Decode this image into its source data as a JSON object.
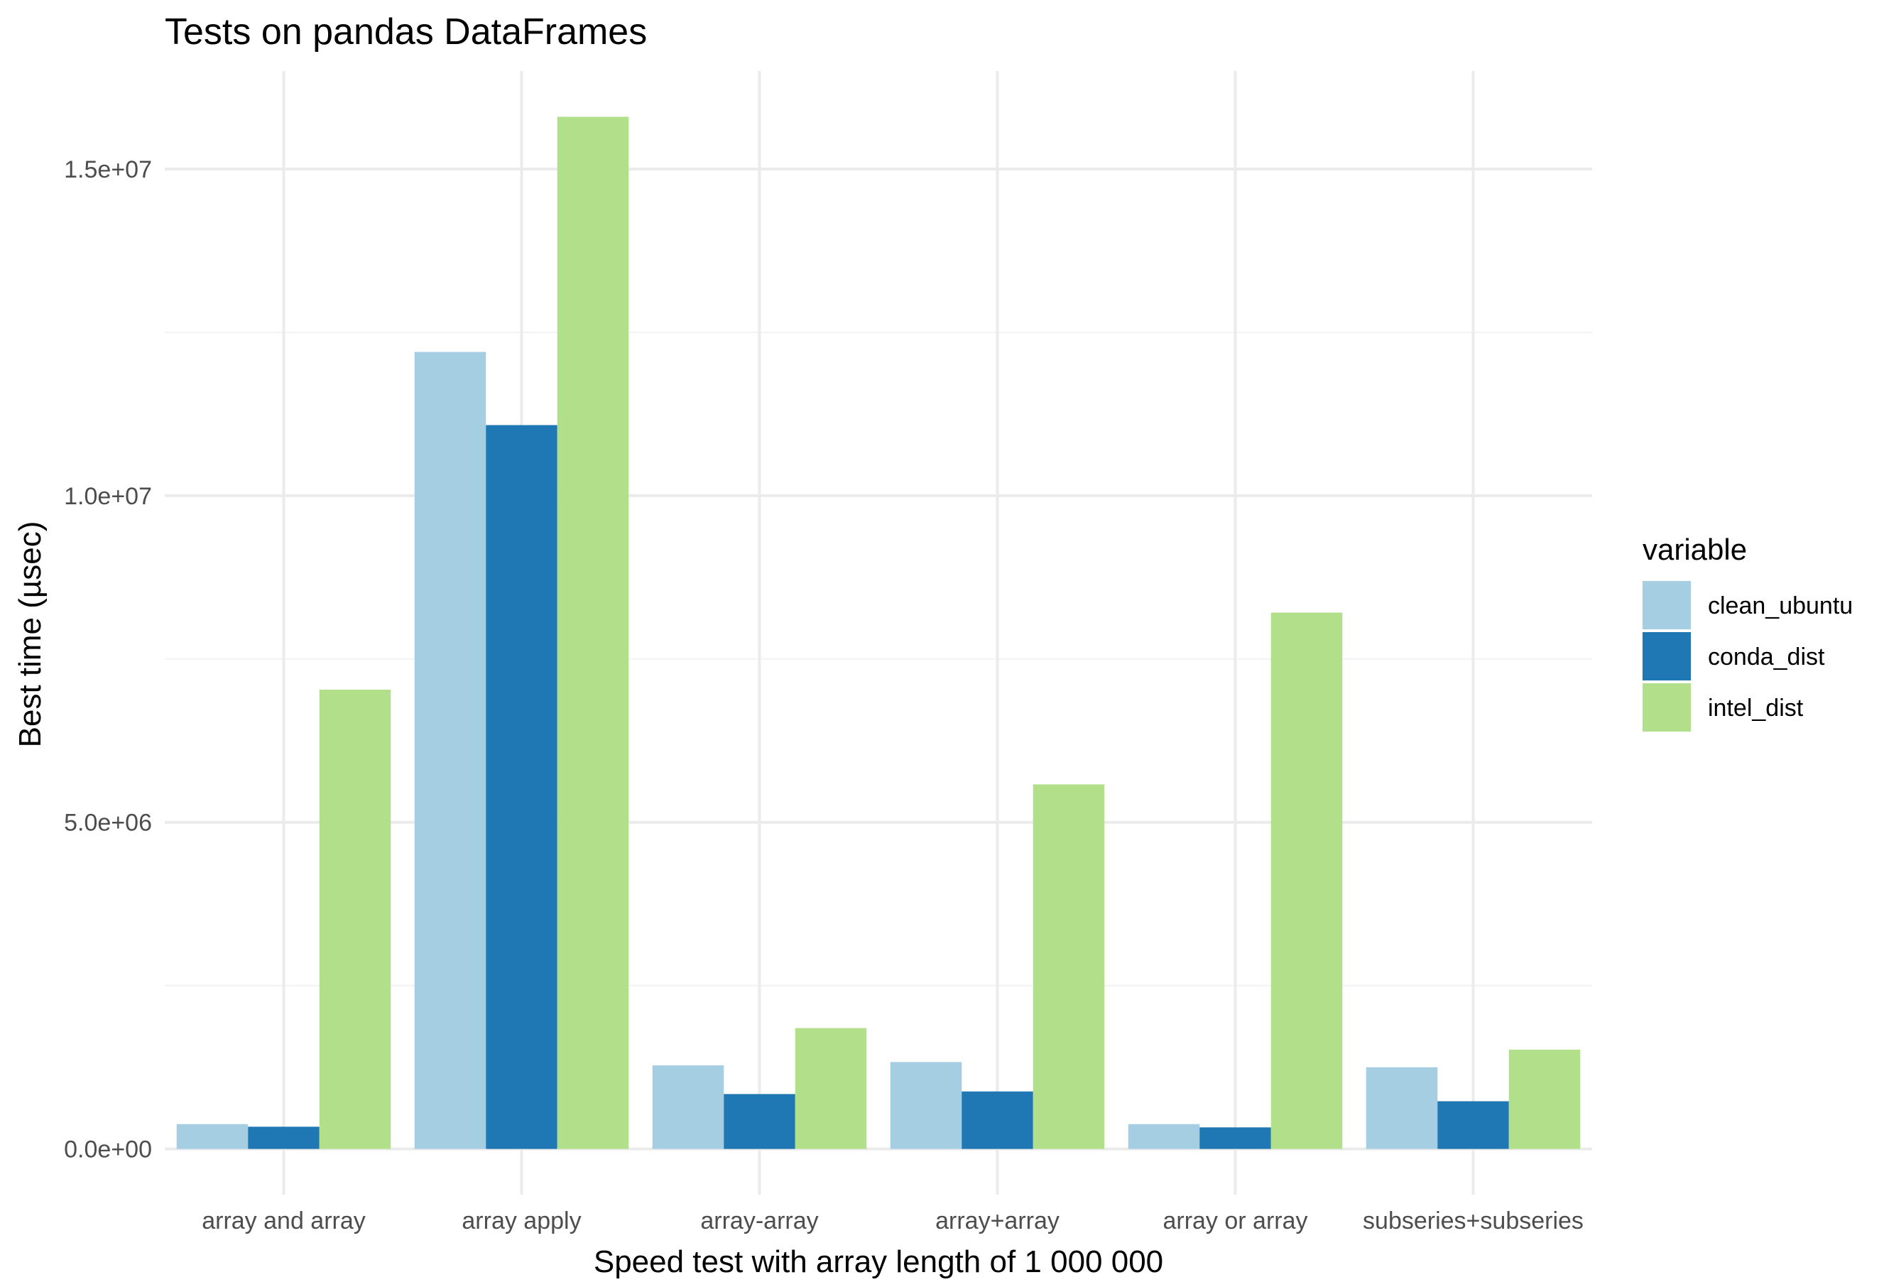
{
  "chart_data": {
    "type": "bar",
    "title": "Tests on pandas DataFrames",
    "xlabel": "Speed test with array length of 1 000 000",
    "ylabel": "Best time (µsec)",
    "categories": [
      "array and array",
      "array apply",
      "array-array",
      "array+array",
      "array or array",
      "subseries+subseries"
    ],
    "series": [
      {
        "name": "clean_ubuntu",
        "color": "#a6cee3",
        "values": [
          380000,
          12200000,
          1280000,
          1330000,
          380000,
          1250000
        ]
      },
      {
        "name": "conda_dist",
        "color": "#1f78b4",
        "values": [
          340000,
          11080000,
          840000,
          880000,
          330000,
          730000
        ]
      },
      {
        "name": "intel_dist",
        "color": "#b2df8a",
        "values": [
          7030000,
          15800000,
          1850000,
          5580000,
          8210000,
          1520000
        ]
      }
    ],
    "ylim": [
      -700000,
      16500000
    ],
    "yticks": [
      0,
      5000000,
      10000000,
      15000000
    ],
    "ytick_labels": [
      "0.0e+00",
      "5.0e+06",
      "1.0e+07",
      "1.5e+07"
    ],
    "legend": {
      "title": "variable",
      "position": "right"
    },
    "grid": true
  }
}
